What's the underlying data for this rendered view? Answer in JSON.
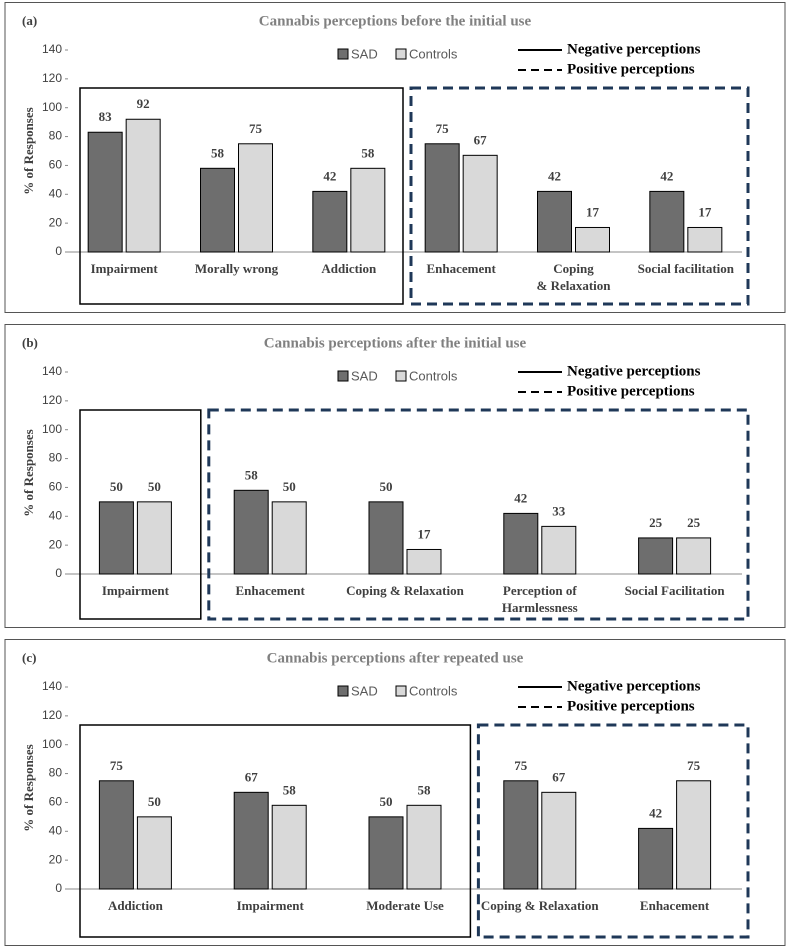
{
  "chart_data": [
    {
      "type": "bar",
      "label": "(a)",
      "title": "Cannabis perceptions before the initial use",
      "ylabel": "% of Responses",
      "categories": [
        "Impairment",
        "Morally wrong",
        "Addiction",
        "Enhacement",
        "Coping\n& Relaxation",
        "Social facilitation"
      ],
      "series": [
        {
          "name": "SAD",
          "color": "#6e6e6e",
          "values": [
            83,
            58,
            42,
            75,
            42,
            42
          ]
        },
        {
          "name": "Controls",
          "color": "#d9d9d9",
          "values": [
            92,
            75,
            58,
            67,
            17,
            17
          ]
        }
      ],
      "groups": [
        {
          "name": "Negative perceptions",
          "dash": false,
          "color": "#000000",
          "span": 3
        },
        {
          "name": "Positive perceptions",
          "dash": true,
          "color": "#1f3858",
          "span": 3
        }
      ],
      "ylim": [
        0,
        140
      ],
      "yticks": [
        0,
        20,
        40,
        60,
        80,
        100,
        120,
        140
      ]
    },
    {
      "type": "bar",
      "label": "(b)",
      "title": "Cannabis perceptions after the initial use",
      "ylabel": "% of Responses",
      "categories": [
        "Impairment",
        "Enhacement",
        "Coping & Relaxation",
        "Perception of\nHarmlessness",
        "Social Facilitation"
      ],
      "series": [
        {
          "name": "SAD",
          "color": "#6e6e6e",
          "values": [
            50,
            58,
            50,
            42,
            25
          ]
        },
        {
          "name": "Controls",
          "color": "#d9d9d9",
          "values": [
            50,
            50,
            17,
            33,
            25
          ]
        }
      ],
      "groups": [
        {
          "name": "Negative perceptions",
          "dash": false,
          "color": "#000000",
          "span": 1
        },
        {
          "name": "Positive perceptions",
          "dash": true,
          "color": "#1f3858",
          "span": 4
        }
      ],
      "ylim": [
        0,
        140
      ],
      "yticks": [
        0,
        20,
        40,
        60,
        80,
        100,
        120,
        140
      ]
    },
    {
      "type": "bar",
      "label": "(c)",
      "title": "Cannabis perceptions after repeated use",
      "ylabel": "% of Responses",
      "categories": [
        "Addiction",
        "Impairment",
        "Moderate Use",
        "Coping & Relaxation",
        "Enhacement"
      ],
      "series": [
        {
          "name": "SAD",
          "color": "#6e6e6e",
          "values": [
            75,
            67,
            50,
            75,
            42
          ]
        },
        {
          "name": "Controls",
          "color": "#d9d9d9",
          "values": [
            50,
            58,
            58,
            67,
            75
          ]
        }
      ],
      "groups": [
        {
          "name": "Negative perceptions",
          "dash": false,
          "color": "#000000",
          "span": 3
        },
        {
          "name": "Positive perceptions",
          "dash": true,
          "color": "#1f3858",
          "span": 2
        }
      ],
      "ylim": [
        0,
        140
      ],
      "yticks": [
        0,
        20,
        40,
        60,
        80,
        100,
        120,
        140
      ]
    }
  ]
}
